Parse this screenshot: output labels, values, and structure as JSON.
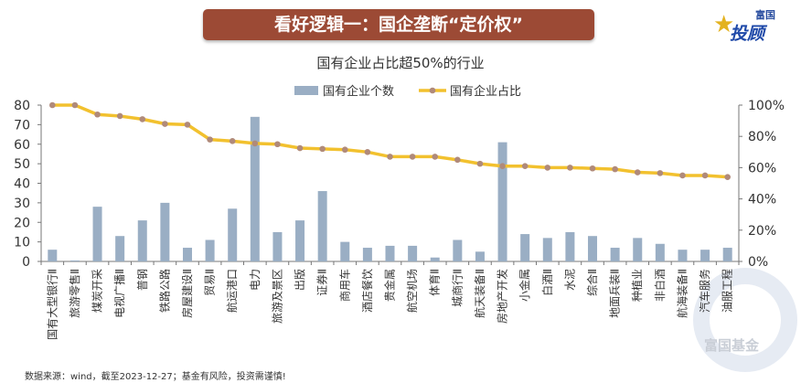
{
  "banner": {
    "title": "看好逻辑一：国企垄断“定价权”"
  },
  "logo": {
    "line1": "富国",
    "line2": "投顾",
    "watermark": "富国基金"
  },
  "footer": "数据来源：wind，截至2023-12-27；基金有风险，投资需谨慎!",
  "colors": {
    "bar": "#9aaec4",
    "line": "#f2c12e",
    "marker": "#b08a7a",
    "banner": "#9c4a35"
  },
  "chart_data": {
    "type": "bar+line",
    "title": "国有企业占比超50%的行业",
    "legend": [
      "国有企业个数",
      "国有企业占比"
    ],
    "legend_position": "top",
    "y_left": {
      "ticks": [
        "0",
        "10",
        "20",
        "30",
        "40",
        "50",
        "60",
        "70",
        "80"
      ],
      "range": [
        0,
        80
      ]
    },
    "y_right": {
      "ticks": [
        "0%",
        "20%",
        "40%",
        "60%",
        "80%",
        "100%"
      ],
      "range": [
        0,
        100
      ]
    },
    "categories": [
      "国有大型银行Ⅱ",
      "旅游零售Ⅱ",
      "煤炭开采",
      "电视广播Ⅱ",
      "普钢",
      "铁路公路",
      "房屋建设Ⅱ",
      "贸易Ⅱ",
      "航运港口",
      "电力",
      "旅游及景区",
      "出版",
      "证券Ⅱ",
      "商用车",
      "酒店餐饮",
      "贵金属",
      "航空机场",
      "体育Ⅱ",
      "城商行Ⅱ",
      "航天装备Ⅱ",
      "房地产开发",
      "小金属",
      "白酒Ⅱ",
      "水泥",
      "综合Ⅱ",
      "地面兵装Ⅱ",
      "种植业",
      "非白酒",
      "航海装备Ⅱ",
      "汽车服务",
      "油服工程"
    ],
    "series": [
      {
        "name": "国有企业个数",
        "axis": "left",
        "type": "bar",
        "values": [
          6,
          0.5,
          28,
          13,
          21,
          30,
          7,
          11,
          27,
          74,
          15,
          21,
          36,
          10,
          7,
          8,
          8,
          2,
          11,
          5,
          61,
          14,
          12,
          15,
          13,
          7,
          12,
          9,
          6,
          6,
          7
        ]
      },
      {
        "name": "国有企业占比",
        "axis": "right",
        "type": "line",
        "values": [
          100,
          100,
          94,
          93,
          91,
          88,
          87.5,
          78,
          77,
          75.5,
          75,
          72.5,
          72,
          71.5,
          70,
          67,
          67,
          67,
          65,
          62.5,
          61,
          61,
          60,
          60,
          59.5,
          59,
          57,
          56.5,
          55,
          55,
          54
        ]
      }
    ]
  }
}
